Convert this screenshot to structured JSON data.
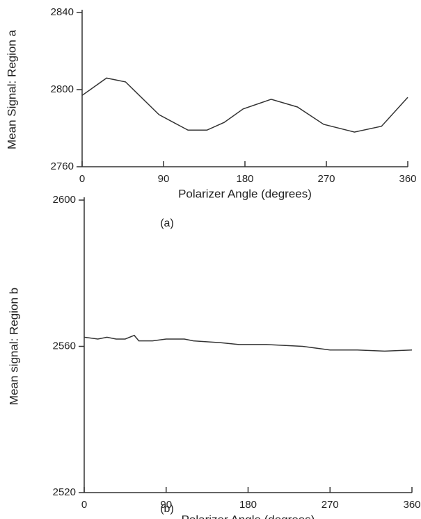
{
  "chart_data": [
    {
      "type": "line",
      "ylabel": "Mean Signal: Region a",
      "xlabel": "Polarizer Angle (degrees)",
      "caption": "(a)",
      "x": [
        0,
        27,
        48,
        85,
        117,
        138,
        157,
        178,
        209,
        238,
        267,
        301,
        331,
        360
      ],
      "series": [
        {
          "color": "#333333",
          "values": [
            2797,
            2806,
            2804,
            2787,
            2779,
            2779,
            2783,
            2790,
            2795,
            2791,
            2782,
            2778,
            2781,
            2796
          ]
        }
      ],
      "xlim": [
        0,
        360
      ],
      "xticks": [
        0,
        90,
        180,
        270,
        360
      ],
      "ylim": [
        2760,
        2840
      ],
      "yticks": [
        2760,
        2800,
        2840
      ]
    },
    {
      "type": "line",
      "ylabel": "Mean signal: Region b",
      "xlabel": "Polarizer Angle (degrees)",
      "caption": "(b)",
      "x": [
        0,
        15,
        25,
        35,
        45,
        55,
        60,
        75,
        90,
        110,
        120,
        150,
        170,
        200,
        240,
        270,
        300,
        330,
        360
      ],
      "series": [
        {
          "color": "#333333",
          "values": [
            2562.5,
            2562,
            2562.5,
            2562,
            2562,
            2563,
            2561.5,
            2561.5,
            2562,
            2562,
            2561.5,
            2561,
            2560.5,
            2560.5,
            2560,
            2559,
            2559,
            2558.7,
            2559
          ]
        }
      ],
      "xlim": [
        0,
        360
      ],
      "xticks": [
        0,
        90,
        180,
        270,
        360
      ],
      "ylim": [
        2520,
        2600
      ],
      "yticks": [
        2520,
        2560,
        2600
      ]
    }
  ]
}
